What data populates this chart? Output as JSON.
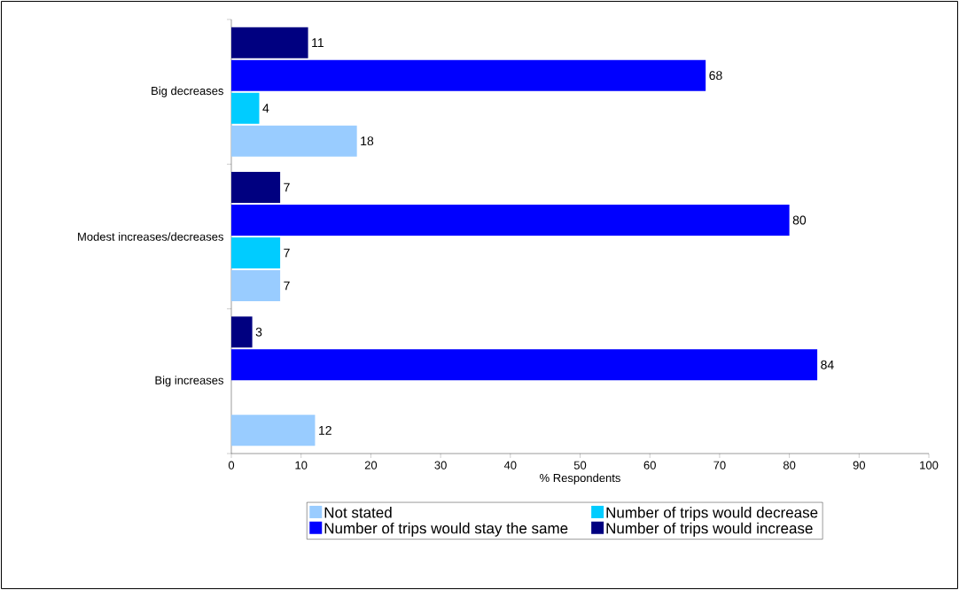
{
  "chart_data": {
    "type": "bar",
    "orientation": "horizontal",
    "xlabel": "% Respondents",
    "categories": [
      "Big decreases",
      "Modest increases/decreases",
      "Big increases"
    ],
    "series": [
      {
        "name": "Not stated",
        "color": "#99ccff",
        "values": [
          18,
          7,
          12
        ]
      },
      {
        "name": "Number of trips would decrease",
        "color": "#00ccff",
        "values": [
          4,
          7,
          null
        ]
      },
      {
        "name": "Number of trips would stay the same",
        "color": "#0000ff",
        "values": [
          68,
          80,
          84
        ]
      },
      {
        "name": "Number of trips would increase",
        "color": "#000080",
        "values": [
          11,
          7,
          3
        ]
      }
    ],
    "xlim": [
      0,
      100
    ],
    "xticks": [
      0,
      10,
      20,
      30,
      40,
      50,
      60,
      70,
      80,
      90,
      100
    ],
    "data_labels": true,
    "legend": "bottom",
    "grid": false
  }
}
